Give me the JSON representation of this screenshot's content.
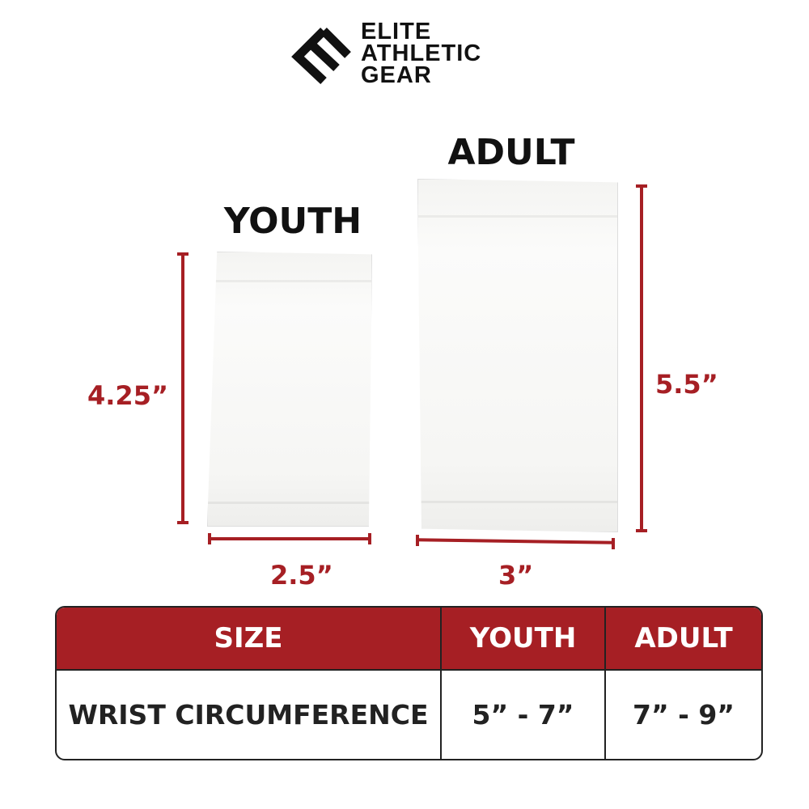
{
  "brand": {
    "line1": "ELITE",
    "line2": "ATHLETIC",
    "line3": "GEAR"
  },
  "products": {
    "youth": {
      "label": "YOUTH",
      "height": "4.25”",
      "width": "2.5”"
    },
    "adult": {
      "label": "ADULT",
      "height": "5.5”",
      "width": "3”"
    }
  },
  "table": {
    "headers": [
      "SIZE",
      "YOUTH",
      "ADULT"
    ],
    "rows": [
      [
        "WRIST CIRCUMFERENCE",
        "5” - 7”",
        "7” - 9”"
      ]
    ]
  },
  "colors": {
    "accent": "#a61f24",
    "text": "#111111"
  }
}
